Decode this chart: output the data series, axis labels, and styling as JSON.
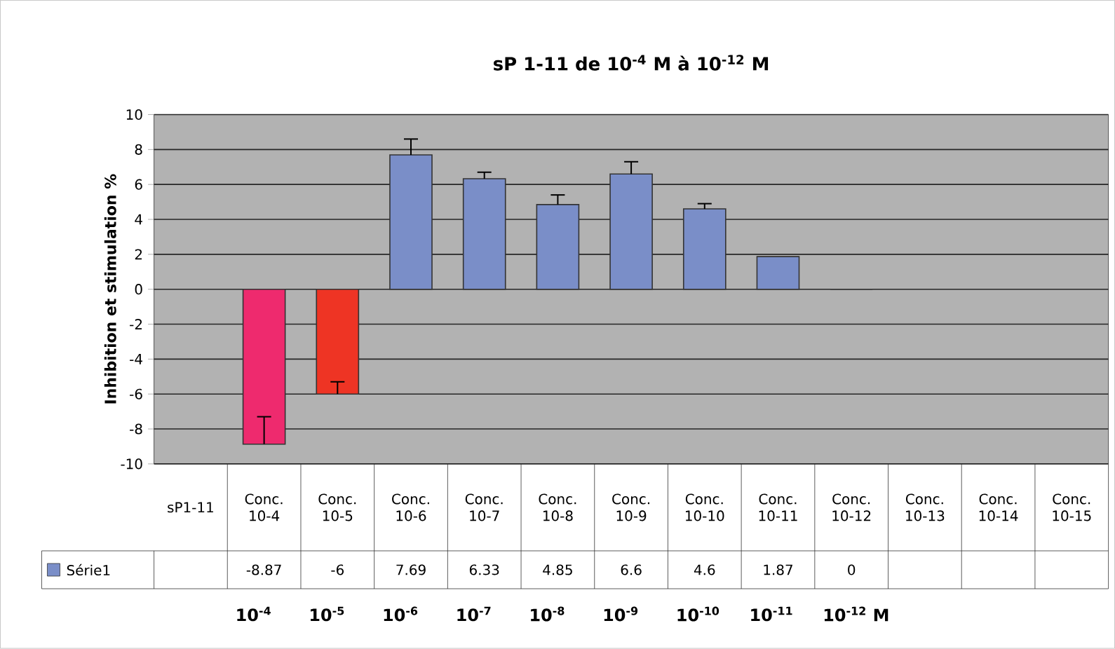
{
  "chart_data": {
    "type": "bar",
    "title": "sP 1-11 de 10$^{-4}$ M à 10$^{-12}$ M",
    "ylabel": "Inhibition  et stimulation  %",
    "categories": [
      "sP1-11",
      "Conc. 10-4",
      "Conc. 10-5",
      "Conc. 10-6",
      "Conc. 10-7",
      "Conc. 10-8",
      "Conc. 10-9",
      "Conc. 10-10",
      "Conc. 10-11",
      "Conc. 10-12",
      "Conc. 10-13",
      "Conc. 10-14",
      "Conc. 10-15"
    ],
    "series": [
      {
        "name": "Série1",
        "color": "#7a8ec8",
        "colors": [
          "#7a8ec8",
          "#ee2a6e",
          "#ee3424",
          "#7a8ec8",
          "#7a8ec8",
          "#7a8ec8",
          "#7a8ec8",
          "#7a8ec8",
          "#7a8ec8",
          "#7a8ec8",
          "#7a8ec8",
          "#7a8ec8",
          "#7a8ec8"
        ],
        "values": [
          null,
          -8.87,
          -6,
          7.69,
          6.33,
          4.85,
          6.6,
          4.6,
          1.87,
          0,
          null,
          null,
          null
        ],
        "errors": [
          null,
          [
            -8.87,
            -7.3
          ],
          [
            -6,
            -5.3
          ],
          [
            7.69,
            8.6
          ],
          [
            6.33,
            6.7
          ],
          [
            4.85,
            5.4
          ],
          [
            6.6,
            7.3
          ],
          [
            4.6,
            4.9
          ],
          null,
          null,
          null,
          null,
          null
        ]
      }
    ],
    "ylim": [
      -10,
      10
    ],
    "yticks": [
      -10,
      -8,
      -6,
      -4,
      -2,
      0,
      2,
      4,
      6,
      8,
      10
    ],
    "grid": "y",
    "legend": "bottom",
    "data_labels": true,
    "annotations": [
      "10$^{-4}$",
      "10$^{-5}$",
      "10$^{-6}$",
      "10$^{-7}$",
      "10$^{-8}$",
      "10$^{-9}$",
      "10$^{-10}$",
      "10$^{-11}$",
      "10$^{-12}$ M"
    ]
  }
}
